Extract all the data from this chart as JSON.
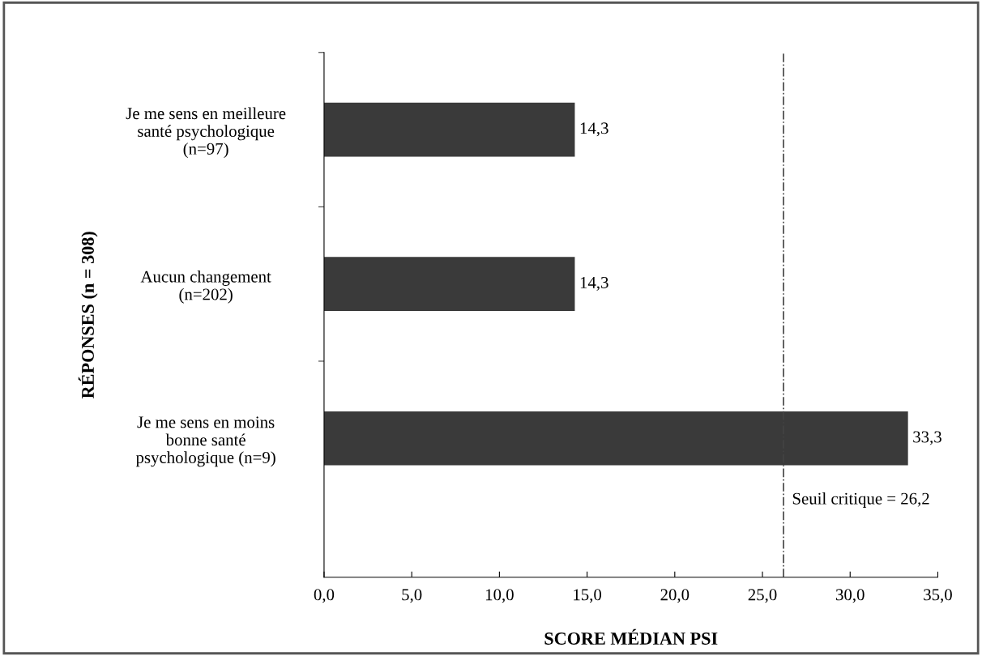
{
  "chart_data": {
    "type": "bar",
    "orientation": "horizontal",
    "xlabel": "SCORE MÉDIAN PSI",
    "ylabel": "RÉPONSES (n = 308)",
    "categories": [
      "Je me sens en meilleure\nsanté psychologique\n(n=97)",
      "Aucun changement\n(n=202)",
      "Je me sens en moins\nbonne santé\npsychologique (n=9)"
    ],
    "values": [
      14.3,
      14.3,
      33.3
    ],
    "value_labels": [
      "14,3",
      "14,3",
      "33,3"
    ],
    "color": "#3a3a3a",
    "xlim": [
      0,
      35
    ],
    "xticks": [
      {
        "value": 0,
        "label": "0,0"
      },
      {
        "value": 5,
        "label": "5,0"
      },
      {
        "value": 10,
        "label": "10,0"
      },
      {
        "value": 15,
        "label": "15,0"
      },
      {
        "value": 20,
        "label": "20,0"
      },
      {
        "value": 25,
        "label": "25,0"
      },
      {
        "value": 30,
        "label": "30,0"
      },
      {
        "value": 35,
        "label": "35,0"
      }
    ],
    "ref_lines": [
      {
        "axis": "x",
        "value": 26.2,
        "label": "Seuil critique = 26,2",
        "color": "#444444",
        "line_style": "dashed"
      }
    ],
    "grid": false,
    "legend": false
  }
}
